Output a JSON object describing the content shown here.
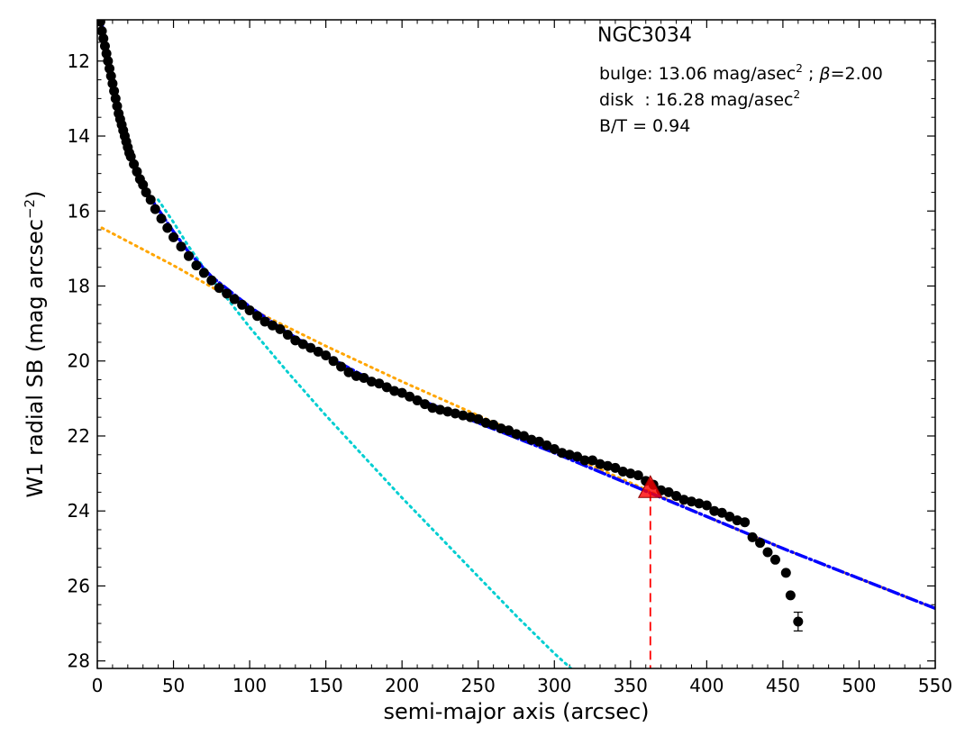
{
  "chart_data": {
    "type": "scatter",
    "title": "NGC3034",
    "xlabel": "semi-major axis (arcsec)",
    "ylabel_prefix": "W1 radial SB (mag arcsec",
    "ylabel_sup": "−2",
    "ylabel_suffix": ")",
    "xlim": [
      0,
      550
    ],
    "ylim": [
      28.2,
      10.9
    ],
    "y_inverted": true,
    "xticks": [
      0,
      50,
      100,
      150,
      200,
      250,
      300,
      350,
      400,
      450,
      500,
      550
    ],
    "yticks": [
      12,
      14,
      16,
      18,
      20,
      22,
      24,
      26,
      28
    ],
    "annotations": {
      "bulge_prefix": "bulge: 13.06 mag/asec",
      "bulge_sup": "2",
      "bulge_sep": " ; ",
      "beta_symbol": "β",
      "bulge_beta": "=2.00",
      "disk_prefix": "disk  : 16.28 mag/asec",
      "disk_sup": "2",
      "bt": "B/T = 0.94"
    },
    "colors": {
      "points": "#000000",
      "bulge": "#00CED1",
      "disk": "#FFA500",
      "total": "#0000FF",
      "marker": "#FF0000"
    },
    "series": [
      {
        "kind": "observed",
        "x": [
          2,
          3,
          4,
          5,
          6,
          7,
          8,
          9,
          10,
          11,
          12,
          13,
          14,
          15,
          16,
          17,
          18,
          19,
          20,
          21,
          22,
          24,
          26,
          28,
          30,
          32,
          35,
          38,
          42,
          46,
          50,
          55,
          60,
          65,
          70,
          75,
          80,
          85,
          90,
          95,
          100,
          105,
          110,
          115,
          120,
          125,
          130,
          135,
          140,
          145,
          150,
          155,
          160,
          165,
          170,
          175,
          180,
          185,
          190,
          195,
          200,
          205,
          210,
          215,
          220,
          225,
          230,
          235,
          240,
          245,
          250,
          255,
          260,
          265,
          270,
          275,
          280,
          285,
          290,
          295,
          300,
          305,
          310,
          315,
          320,
          325,
          330,
          335,
          340,
          345,
          350,
          355,
          360,
          365,
          370,
          375,
          380,
          385,
          390,
          395,
          400,
          405,
          410,
          415,
          420,
          425,
          430,
          435,
          440,
          445,
          452,
          455
        ],
        "y": [
          10.95,
          11.2,
          11.4,
          11.6,
          11.8,
          12.0,
          12.2,
          12.4,
          12.6,
          12.8,
          13.0,
          13.2,
          13.4,
          13.55,
          13.7,
          13.85,
          14.0,
          14.15,
          14.3,
          14.45,
          14.55,
          14.75,
          14.95,
          15.15,
          15.3,
          15.5,
          15.7,
          15.95,
          16.2,
          16.45,
          16.7,
          16.95,
          17.2,
          17.45,
          17.65,
          17.85,
          18.05,
          18.2,
          18.35,
          18.5,
          18.65,
          18.8,
          18.95,
          19.05,
          19.15,
          19.3,
          19.45,
          19.55,
          19.65,
          19.75,
          19.85,
          20.0,
          20.15,
          20.3,
          20.4,
          20.45,
          20.55,
          20.6,
          20.7,
          20.8,
          20.85,
          20.95,
          21.05,
          21.15,
          21.25,
          21.3,
          21.35,
          21.4,
          21.45,
          21.5,
          21.55,
          21.65,
          21.7,
          21.8,
          21.85,
          21.95,
          22.0,
          22.1,
          22.15,
          22.25,
          22.35,
          22.45,
          22.5,
          22.55,
          22.65,
          22.65,
          22.75,
          22.8,
          22.85,
          22.95,
          23.0,
          23.05,
          23.2,
          23.3,
          23.45,
          23.5,
          23.6,
          23.7,
          23.75,
          23.8,
          23.85,
          24.0,
          24.05,
          24.15,
          24.25,
          24.3,
          24.7,
          24.85,
          25.1,
          25.3,
          25.65,
          26.25
        ],
        "err": [
          0,
          0,
          0,
          0,
          0,
          0,
          0,
          0,
          0,
          0,
          0,
          0,
          0,
          0,
          0,
          0,
          0,
          0,
          0,
          0,
          0,
          0,
          0,
          0,
          0,
          0,
          0,
          0,
          0,
          0,
          0,
          0,
          0,
          0,
          0,
          0,
          0,
          0,
          0,
          0,
          0,
          0,
          0,
          0,
          0,
          0,
          0,
          0,
          0,
          0,
          0,
          0,
          0,
          0,
          0,
          0,
          0,
          0,
          0,
          0,
          0,
          0,
          0,
          0,
          0,
          0,
          0,
          0,
          0,
          0,
          0,
          0,
          0,
          0,
          0,
          0,
          0,
          0,
          0,
          0,
          0,
          0,
          0,
          0,
          0,
          0,
          0,
          0,
          0,
          0,
          0,
          0,
          0,
          0,
          0,
          0,
          0,
          0,
          0,
          0,
          0,
          0,
          0,
          0,
          0,
          0,
          0,
          0,
          0,
          0,
          0,
          0.1
        ],
        "extra_x": [
          460
        ],
        "extra_y": [
          26.95
        ],
        "extra_err": [
          0.25
        ]
      },
      {
        "kind": "bulge",
        "style": "dotted",
        "x": [
          40,
          50,
          60,
          75,
          100,
          125,
          150,
          175,
          200,
          225,
          250,
          275,
          300,
          315
        ],
        "y": [
          15.7,
          16.3,
          16.95,
          17.8,
          19.1,
          20.3,
          21.45,
          22.55,
          23.65,
          24.7,
          25.75,
          26.8,
          27.8,
          28.35
        ]
      },
      {
        "kind": "disk",
        "style": "dotted",
        "x": [
          3,
          50,
          100,
          150,
          200,
          250,
          300,
          350,
          400,
          450,
          500,
          550
        ],
        "y": [
          16.45,
          17.45,
          18.6,
          19.6,
          20.55,
          21.45,
          22.35,
          23.25,
          24.15,
          25.0,
          25.8,
          26.6
        ]
      },
      {
        "kind": "total",
        "style": "dash-dot",
        "x": [
          3,
          5,
          8,
          12,
          16,
          20,
          25,
          30,
          35,
          40,
          50,
          60,
          75,
          100,
          125,
          150,
          175,
          200,
          250,
          300,
          350,
          400,
          450,
          500,
          550
        ],
        "y": [
          11.0,
          11.5,
          12.2,
          12.95,
          13.7,
          14.3,
          14.85,
          15.3,
          15.65,
          15.95,
          16.55,
          17.1,
          17.75,
          18.55,
          19.25,
          19.85,
          20.4,
          20.85,
          21.65,
          22.45,
          23.3,
          24.15,
          25.0,
          25.8,
          26.6
        ]
      }
    ],
    "marker": {
      "x": 363,
      "y": 23.4
    },
    "dashed_line": {
      "x": 363,
      "y_top": 23.5,
      "y_bottom": 28.2
    }
  }
}
